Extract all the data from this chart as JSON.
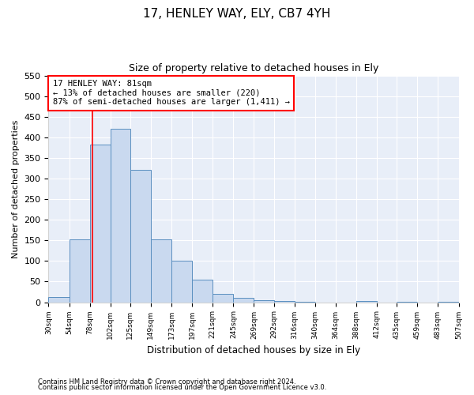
{
  "title": "17, HENLEY WAY, ELY, CB7 4YH",
  "subtitle": "Size of property relative to detached houses in Ely",
  "xlabel": "Distribution of detached houses by size in Ely",
  "ylabel": "Number of detached properties",
  "footnote1": "Contains HM Land Registry data © Crown copyright and database right 2024.",
  "footnote2": "Contains public sector information licensed under the Open Government Licence v3.0.",
  "annotation_line1": "17 HENLEY WAY: 81sqm",
  "annotation_line2": "← 13% of detached houses are smaller (220)",
  "annotation_line3": "87% of semi-detached houses are larger (1,411) →",
  "bar_color": "#c9d9ef",
  "bar_edge_color": "#5a8fc0",
  "background_color": "#e8eef8",
  "red_line_x": 81,
  "ylim": [
    0,
    550
  ],
  "yticks": [
    0,
    50,
    100,
    150,
    200,
    250,
    300,
    350,
    400,
    450,
    500,
    550
  ],
  "bins": [
    30,
    54,
    78,
    102,
    125,
    149,
    173,
    197,
    221,
    245,
    269,
    292,
    316,
    340,
    364,
    388,
    412,
    435,
    459,
    483,
    507
  ],
  "bar_heights": [
    13,
    153,
    382,
    420,
    322,
    152,
    100,
    55,
    20,
    10,
    5,
    3,
    2,
    0,
    0,
    3,
    0,
    1,
    0,
    1
  ]
}
